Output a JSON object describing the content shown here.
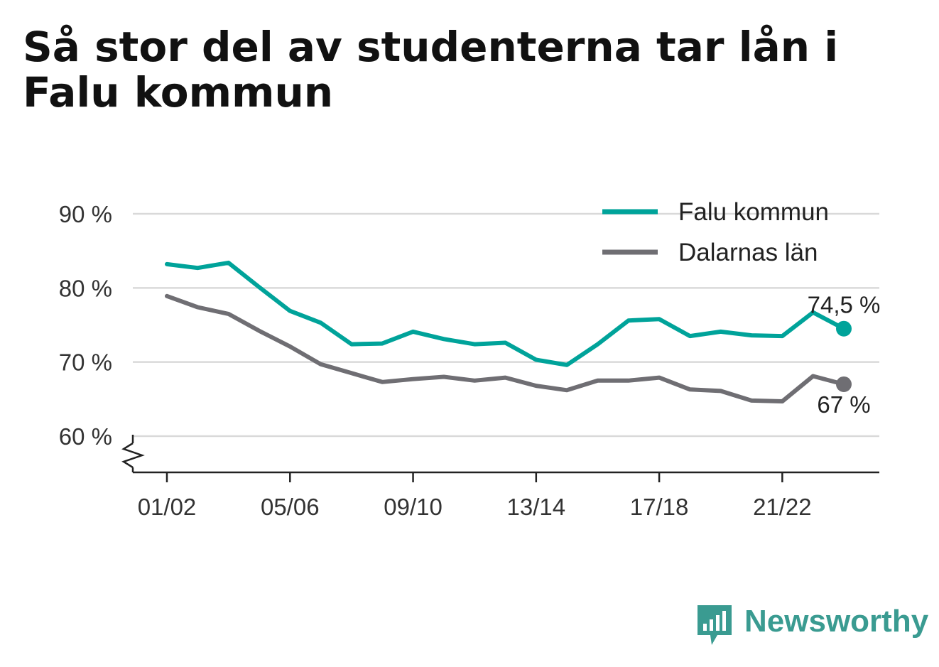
{
  "title": "Så stor del av studenterna tar lån i Falu kommun",
  "colors": {
    "falu": "#00a39a",
    "dalarna": "#6f6e73",
    "grid": "#d9d9d9",
    "axis": "#222222",
    "brand": "#3a9b91"
  },
  "brand": {
    "name": "Newsworthy",
    "icon": "bar-chart-speech-bubble-icon"
  },
  "chart_data": {
    "type": "line",
    "title": "Så stor del av studenterna tar lån i Falu kommun",
    "xlabel": "",
    "ylabel": "",
    "x": [
      "01/02",
      "02/03",
      "03/04",
      "04/05",
      "05/06",
      "06/07",
      "07/08",
      "08/09",
      "09/10",
      "10/11",
      "11/12",
      "12/13",
      "13/14",
      "14/15",
      "15/16",
      "16/17",
      "17/18",
      "18/19",
      "19/20",
      "20/21",
      "21/22",
      "22/23",
      "23/24"
    ],
    "x_tick_labels": [
      "01/02",
      "05/06",
      "09/10",
      "13/14",
      "17/18",
      "21/22"
    ],
    "y_ticks": [
      60,
      70,
      80,
      90
    ],
    "y_tick_labels": [
      "60 %",
      "70 %",
      "80 %",
      "90 %"
    ],
    "ylim": [
      55,
      92
    ],
    "y_axis_break": true,
    "grid": true,
    "legend_position": "top-right",
    "series": [
      {
        "name": "Falu kommun",
        "color": "#00a39a",
        "values": [
          83.2,
          82.7,
          83.4,
          80.1,
          76.9,
          75.3,
          72.4,
          72.5,
          74.1,
          73.1,
          72.4,
          72.6,
          70.3,
          69.6,
          72.4,
          75.6,
          75.8,
          73.5,
          74.1,
          73.6,
          73.5,
          76.7,
          74.5
        ],
        "end_label": "74,5 %"
      },
      {
        "name": "Dalarnas län",
        "color": "#6f6e73",
        "values": [
          78.9,
          77.4,
          76.5,
          74.2,
          72.1,
          69.7,
          68.5,
          67.3,
          67.7,
          68.0,
          67.5,
          67.9,
          66.8,
          66.2,
          67.5,
          67.5,
          67.9,
          66.3,
          66.1,
          64.8,
          64.7,
          68.1,
          67.0
        ],
        "end_label": "67 %"
      }
    ]
  }
}
